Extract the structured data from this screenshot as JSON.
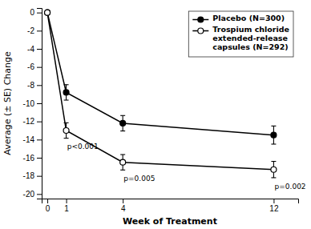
{
  "chart_data": {
    "type": "line",
    "xlabel": "Week of Treatment",
    "ylabel": "Average (± SE) Change",
    "x": [
      0,
      1,
      4,
      12
    ],
    "xlim": [
      -0.3,
      13.3
    ],
    "xticks": [
      0,
      1,
      4,
      12
    ],
    "ylim": [
      -20.5,
      0.5
    ],
    "yticks": [
      0,
      -2,
      -4,
      -6,
      -8,
      -10,
      -12,
      -14,
      -16,
      -18,
      -20
    ],
    "grid": false,
    "legend": "upper right",
    "series": [
      {
        "name": "Placebo (N=300)",
        "color": "black",
        "marker": "circle",
        "line_style": "solid",
        "values": [
          0,
          -8.8,
          -12.2,
          -13.5
        ],
        "errors": [
          0.0,
          0.85,
          0.85,
          1.0
        ]
      },
      {
        "name": "Trospium chloride\nextended-release\ncapsules (N=292)",
        "color": "black",
        "marker": "open-circle",
        "line_style": "solid",
        "values": [
          0,
          -13.0,
          -16.5,
          -17.3
        ],
        "errors": [
          0.0,
          0.85,
          0.85,
          0.9
        ]
      }
    ],
    "annotations": [
      {
        "x": 1.05,
        "y": -14.5,
        "text": "p<0.001"
      },
      {
        "x": 4.05,
        "y": -18.0,
        "text": "p=0.005"
      },
      {
        "x": 12.05,
        "y": -18.9,
        "text": "p=0.002"
      }
    ]
  }
}
